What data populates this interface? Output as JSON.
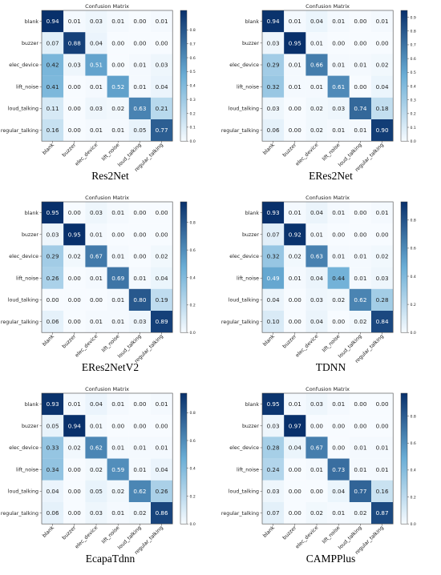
{
  "figure": {
    "labels": [
      "blank",
      "buzzer",
      "elec_device",
      "lift_noise",
      "loud_talking",
      "regular_talking"
    ],
    "colorbar_ticks": [
      "0.0",
      "0.1",
      "0.2",
      "0.3",
      "0.4",
      "0.5",
      "0.6",
      "0.7",
      "0.8"
    ],
    "colormap": {
      "low": "#f7fbff",
      "mid": "#6baed6",
      "high": "#08306b"
    }
  },
  "chart_data": [
    {
      "type": "heatmap",
      "title": "Confusion Matrix",
      "caption": "Res2Net",
      "colorbar_ticks": [
        "0.0",
        "0.1",
        "0.2",
        "0.3",
        "0.4",
        "0.5",
        "0.6",
        "0.7",
        "0.8"
      ],
      "vmax": 0.94,
      "values": [
        [
          0.94,
          0.01,
          0.03,
          0.01,
          0.0,
          0.01
        ],
        [
          0.07,
          0.88,
          0.04,
          0.0,
          0.0,
          0.0
        ],
        [
          0.42,
          0.03,
          0.51,
          0.0,
          0.01,
          0.03
        ],
        [
          0.41,
          0.0,
          0.01,
          0.52,
          0.01,
          0.04
        ],
        [
          0.11,
          0.0,
          0.03,
          0.02,
          0.63,
          0.21
        ],
        [
          0.16,
          0.0,
          0.01,
          0.01,
          0.05,
          0.77
        ]
      ]
    },
    {
      "type": "heatmap",
      "title": "Confusion Matrix",
      "caption": "ERes2Net",
      "colorbar_ticks": [
        "0.0",
        "0.1",
        "0.2",
        "0.3",
        "0.4",
        "0.5",
        "0.6",
        "0.7",
        "0.8",
        "0.9"
      ],
      "vmax": 0.95,
      "values": [
        [
          0.94,
          0.01,
          0.04,
          0.01,
          0.0,
          0.01
        ],
        [
          0.03,
          0.95,
          0.01,
          0.0,
          0.0,
          0.0
        ],
        [
          0.29,
          0.01,
          0.66,
          0.01,
          0.01,
          0.02
        ],
        [
          0.32,
          0.01,
          0.01,
          0.61,
          0.0,
          0.04
        ],
        [
          0.03,
          0.0,
          0.02,
          0.03,
          0.74,
          0.18
        ],
        [
          0.06,
          0.0,
          0.02,
          0.01,
          0.01,
          0.9
        ]
      ]
    },
    {
      "type": "heatmap",
      "title": "Confusion Matrix",
      "caption": "ERes2NetV2",
      "colorbar_ticks": [
        "0.0",
        "0.2",
        "0.4",
        "0.6",
        "0.8"
      ],
      "vmax": 0.95,
      "values": [
        [
          0.95,
          0.0,
          0.03,
          0.01,
          0.0,
          0.0
        ],
        [
          0.03,
          0.95,
          0.01,
          0.0,
          0.0,
          0.0
        ],
        [
          0.29,
          0.02,
          0.67,
          0.01,
          0.0,
          0.02
        ],
        [
          0.26,
          0.0,
          0.01,
          0.69,
          0.01,
          0.04
        ],
        [
          0.0,
          0.0,
          0.0,
          0.01,
          0.8,
          0.19
        ],
        [
          0.06,
          0.0,
          0.01,
          0.01,
          0.03,
          0.89
        ]
      ]
    },
    {
      "type": "heatmap",
      "title": "Confusion Matrix",
      "caption": "TDNN",
      "colorbar_ticks": [
        "0.0",
        "0.2",
        "0.4",
        "0.6",
        "0.8"
      ],
      "vmax": 0.93,
      "values": [
        [
          0.93,
          0.01,
          0.04,
          0.01,
          0.0,
          0.01
        ],
        [
          0.07,
          0.92,
          0.01,
          0.0,
          0.0,
          0.0
        ],
        [
          0.32,
          0.02,
          0.63,
          0.01,
          0.01,
          0.02
        ],
        [
          0.49,
          0.01,
          0.04,
          0.44,
          0.01,
          0.03
        ],
        [
          0.04,
          0.0,
          0.03,
          0.02,
          0.62,
          0.28
        ],
        [
          0.1,
          0.0,
          0.04,
          0.0,
          0.02,
          0.84
        ]
      ]
    },
    {
      "type": "heatmap",
      "title": "Confusion Matrix",
      "caption": "EcapaTdnn",
      "colorbar_ticks": [
        "0.0",
        "0.2",
        "0.4",
        "0.6",
        "0.8"
      ],
      "vmax": 0.94,
      "values": [
        [
          0.93,
          0.01,
          0.04,
          0.01,
          0.0,
          0.01
        ],
        [
          0.05,
          0.94,
          0.01,
          0.0,
          0.0,
          0.0
        ],
        [
          0.33,
          0.02,
          0.62,
          0.01,
          0.01,
          0.01
        ],
        [
          0.34,
          0.0,
          0.02,
          0.59,
          0.01,
          0.04
        ],
        [
          0.04,
          0.0,
          0.05,
          0.02,
          0.62,
          0.26
        ],
        [
          0.06,
          0.0,
          0.03,
          0.01,
          0.02,
          0.86
        ]
      ]
    },
    {
      "type": "heatmap",
      "title": "Confusion Matrix",
      "caption": "CAMPPlus",
      "colorbar_ticks": [
        "0.0",
        "0.2",
        "0.4",
        "0.6",
        "0.8"
      ],
      "vmax": 0.97,
      "values": [
        [
          0.95,
          0.01,
          0.03,
          0.01,
          0.0,
          0.0
        ],
        [
          0.03,
          0.97,
          0.0,
          0.0,
          0.0,
          0.0
        ],
        [
          0.28,
          0.04,
          0.67,
          0.0,
          0.01,
          0.01
        ],
        [
          0.24,
          0.0,
          0.01,
          0.73,
          0.01,
          0.01
        ],
        [
          0.03,
          0.0,
          0.0,
          0.04,
          0.77,
          0.16
        ],
        [
          0.07,
          0.0,
          0.02,
          0.01,
          0.02,
          0.87
        ]
      ]
    }
  ]
}
